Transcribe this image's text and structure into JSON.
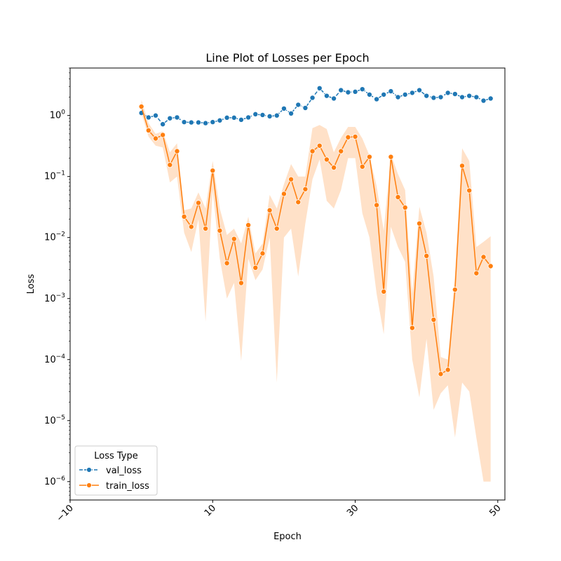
{
  "chart_data": {
    "type": "line",
    "title": "Line Plot of Losses per Epoch",
    "xlabel": "Epoch",
    "ylabel": "Loss",
    "xlim": [
      -10,
      51
    ],
    "ylim": [
      5e-07,
      6
    ],
    "yscale": "log",
    "grid": false,
    "x_ticks": [
      -10,
      10,
      30,
      50
    ],
    "x_tick_labels": [
      "−10",
      "10",
      "30",
      "50"
    ],
    "x_tick_rotation": 45,
    "y_ticks": [
      1e-06,
      1e-05,
      0.0001,
      0.001,
      0.01,
      0.1,
      1
    ],
    "y_tick_labels": [
      "10^-6",
      "10^-5",
      "10^-4",
      "10^-3",
      "10^-2",
      "10^-1",
      "10^0"
    ],
    "legend": {
      "title": "Loss Type",
      "placement": "lower-left"
    },
    "x": [
      0,
      1,
      2,
      3,
      4,
      5,
      6,
      7,
      8,
      9,
      10,
      11,
      12,
      13,
      14,
      15,
      16,
      17,
      18,
      19,
      20,
      21,
      22,
      23,
      24,
      25,
      26,
      27,
      28,
      29,
      30,
      31,
      32,
      33,
      34,
      35,
      36,
      37,
      38,
      39,
      40,
      41,
      42,
      43,
      44,
      45,
      46,
      47,
      48,
      49
    ],
    "series": [
      {
        "name": "val_loss",
        "color": "#1f77b4",
        "values": [
          1.1,
          0.93,
          1.0,
          0.72,
          0.9,
          0.93,
          0.78,
          0.77,
          0.77,
          0.75,
          0.78,
          0.83,
          0.92,
          0.92,
          0.85,
          0.93,
          1.05,
          1.02,
          0.97,
          1.0,
          1.3,
          1.08,
          1.5,
          1.33,
          1.95,
          2.8,
          2.1,
          1.9,
          2.6,
          2.4,
          2.45,
          2.7,
          2.2,
          1.85,
          2.2,
          2.5,
          2.0,
          2.2,
          2.35,
          2.6,
          2.1,
          1.95,
          2.0,
          2.35,
          2.25,
          2.0,
          2.1,
          2.0,
          1.75,
          1.9
        ]
      },
      {
        "name": "train_loss",
        "color": "#ff7f0e",
        "band_color": "#ffdcbe",
        "values": [
          1.4,
          0.57,
          0.42,
          0.48,
          0.155,
          0.26,
          0.022,
          0.015,
          0.037,
          0.014,
          0.125,
          0.013,
          0.0038,
          0.0095,
          0.0018,
          0.016,
          0.0032,
          0.0055,
          0.028,
          0.014,
          0.052,
          0.09,
          0.038,
          0.062,
          0.26,
          0.32,
          0.19,
          0.14,
          0.26,
          0.44,
          0.45,
          0.145,
          0.21,
          0.034,
          0.0013,
          0.21,
          0.046,
          0.031,
          0.00033,
          0.017,
          0.005,
          0.00045,
          5.8e-05,
          6.8e-05,
          0.0014,
          0.15,
          0.059,
          0.0026,
          0.0048,
          0.0034
        ],
        "band_low": [
          1.1,
          0.45,
          0.32,
          0.3,
          0.08,
          0.1,
          0.012,
          0.0058,
          0.02,
          0.00042,
          0.06,
          0.0045,
          0.001,
          0.0018,
          9.5e-05,
          0.0045,
          0.002,
          0.003,
          0.01,
          4.2e-05,
          0.01,
          0.014,
          0.0023,
          0.017,
          0.09,
          0.19,
          0.04,
          0.03,
          0.06,
          0.2,
          0.2,
          0.025,
          0.01,
          0.0012,
          0.00026,
          0.015,
          0.007,
          0.004,
          0.0001,
          2.4e-05,
          0.00022,
          1.5e-05,
          2.8e-05,
          3.8e-05,
          5.3e-06,
          4.2e-05,
          3e-05,
          5.2e-06,
          1e-06,
          1e-06
        ],
        "band_high": [
          1.8,
          0.75,
          0.5,
          0.55,
          0.25,
          0.35,
          0.028,
          0.03,
          0.055,
          0.03,
          0.18,
          0.03,
          0.011,
          0.014,
          0.008,
          0.022,
          0.0055,
          0.008,
          0.05,
          0.03,
          0.075,
          0.16,
          0.1,
          0.1,
          0.62,
          0.7,
          0.6,
          0.25,
          0.43,
          0.65,
          0.65,
          0.42,
          0.22,
          0.07,
          0.013,
          0.23,
          0.11,
          0.06,
          0.0012,
          0.032,
          0.012,
          0.0023,
          0.00011,
          0.0001,
          0.0025,
          0.29,
          0.18,
          0.007,
          0.0085,
          0.0105
        ]
      }
    ]
  }
}
